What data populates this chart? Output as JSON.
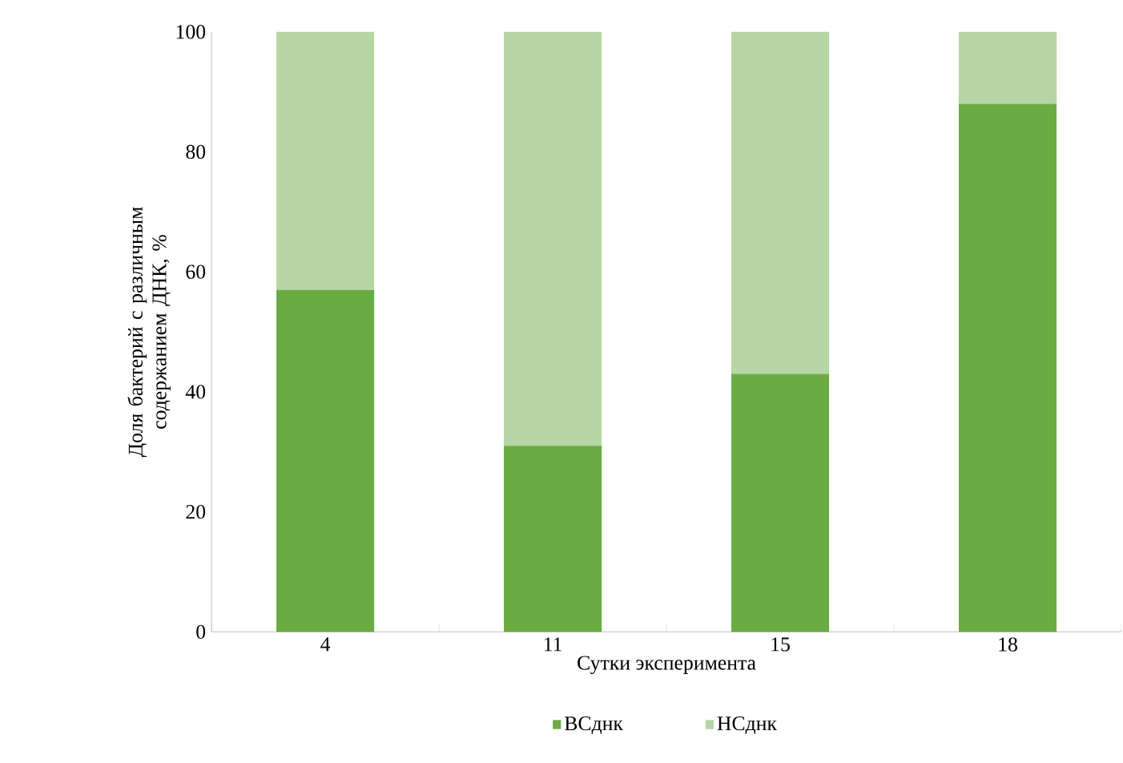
{
  "chart_data": {
    "type": "bar",
    "stacked": true,
    "xlabel": "Сутки эксперимента",
    "ylabel": "Доля бактерий с различным содержанием ДНК, %",
    "categories": [
      "4",
      "11",
      "15",
      "18"
    ],
    "series": [
      {
        "name": "ВСднк",
        "color": "#6aac42",
        "values": [
          57,
          31,
          43,
          88
        ]
      },
      {
        "name": "НСднк",
        "color": "#b6d4a4",
        "values": [
          43,
          69,
          57,
          12
        ]
      }
    ],
    "ylim": [
      0,
      100
    ],
    "yticks": [
      0,
      20,
      40,
      60,
      80,
      100
    ],
    "grid": false,
    "legend": "bottom"
  }
}
